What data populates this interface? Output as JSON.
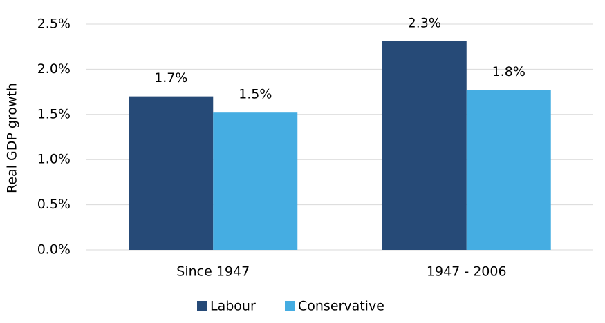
{
  "chart_data": {
    "type": "bar",
    "y_label": "Real GDP growth",
    "categories": [
      "Since 1947",
      "1947 - 2006"
    ],
    "series": [
      {
        "name": "Labour",
        "color": "#264a77",
        "values": [
          1.7,
          2.31
        ],
        "value_labels": [
          "1.7%",
          "2.3%"
        ]
      },
      {
        "name": "Conservative",
        "color": "#45ade2",
        "values": [
          1.52,
          1.77
        ],
        "value_labels": [
          "1.5%",
          "1.8%"
        ]
      }
    ],
    "ylim": [
      0,
      2.5
    ],
    "yticks": [
      {
        "value": 0,
        "label": "0.0%"
      },
      {
        "value": 0.5,
        "label": "0.5%"
      },
      {
        "value": 1,
        "label": "1.0%"
      },
      {
        "value": 1.5,
        "label": "1.5%"
      },
      {
        "value": 2,
        "label": "2.0%"
      },
      {
        "value": 2.5,
        "label": "2.5%"
      }
    ],
    "grid": true,
    "legend": "bottom"
  }
}
